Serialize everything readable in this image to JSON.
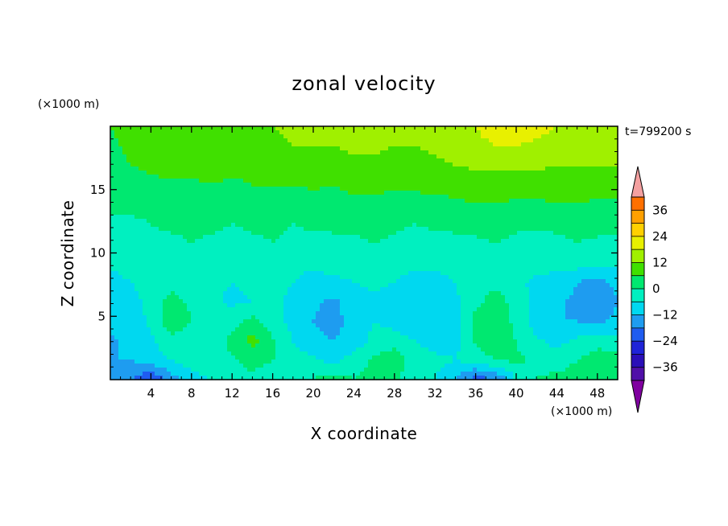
{
  "chart_data": {
    "type": "heatmap",
    "title": "zonal velocity",
    "xlabel": "X coordinate",
    "ylabel": "Z coordinate",
    "x_unit": "(×1000 m)",
    "y_unit": "(×1000 m)",
    "time_label": "t=799200 s",
    "xlim": [
      0,
      50
    ],
    "ylim": [
      0,
      20
    ],
    "x_ticks": [
      4,
      8,
      12,
      16,
      20,
      24,
      28,
      32,
      36,
      40,
      44,
      48
    ],
    "y_ticks": [
      5,
      10,
      15
    ],
    "colorbar": {
      "levels": [
        -42,
        -36,
        -30,
        -24,
        -18,
        -12,
        -6,
        0,
        6,
        12,
        18,
        24,
        30,
        36,
        42
      ],
      "labeled_levels": [
        36,
        24,
        12,
        0,
        -12,
        -24,
        -36
      ],
      "colors": [
        "#8000a0",
        "#5010a8",
        "#2a0fb8",
        "#1f24d8",
        "#1f5cf0",
        "#1e9cf0",
        "#00d8f0",
        "#00f0c0",
        "#00e870",
        "#40e000",
        "#a0f000",
        "#e8f000",
        "#ffd000",
        "#ffa000",
        "#ff7000",
        "#ff2a10",
        "#f4a0a0"
      ],
      "extend": "both"
    },
    "grid": [
      [
        6,
        8,
        10,
        11,
        12,
        11,
        10,
        11,
        12,
        13,
        13,
        13,
        14,
        14,
        13,
        12,
        14,
        16,
        18,
        20,
        20,
        20,
        18,
        17,
        16,
        16
      ],
      [
        5,
        7,
        9,
        10,
        11,
        11,
        10,
        10,
        11,
        12,
        12,
        12,
        13,
        13,
        12,
        12,
        13,
        15,
        17,
        18,
        18,
        17,
        16,
        15,
        15,
        15
      ],
      [
        4,
        6,
        7,
        8,
        8,
        8,
        8,
        8,
        9,
        9,
        10,
        10,
        11,
        11,
        10,
        10,
        11,
        12,
        13,
        13,
        13,
        13,
        12,
        12,
        12,
        12
      ],
      [
        3,
        4,
        5,
        5,
        5,
        6,
        5,
        6,
        6,
        6,
        7,
        6,
        8,
        7,
        7,
        7,
        8,
        8,
        9,
        9,
        9,
        9,
        8,
        9,
        9,
        9
      ],
      [
        1,
        1,
        2,
        2,
        3,
        3,
        2,
        3,
        4,
        3,
        3,
        4,
        4,
        5,
        4,
        4,
        4,
        5,
        6,
        6,
        5,
        5,
        6,
        6,
        5,
        5
      ],
      [
        -1,
        -1,
        0,
        1,
        1,
        1,
        0,
        1,
        1,
        0,
        1,
        1,
        1,
        2,
        1,
        0,
        1,
        1,
        2,
        2,
        1,
        1,
        1,
        2,
        2,
        2
      ],
      [
        -3,
        -2,
        -1,
        -1,
        0,
        -1,
        -2,
        -1,
        0,
        -1,
        -2,
        -1,
        -1,
        0,
        -1,
        -2,
        -2,
        -1,
        -1,
        0,
        -1,
        -2,
        -1,
        0,
        -1,
        -1
      ],
      [
        -5,
        -3,
        -2,
        -2,
        -3,
        -3,
        -4,
        -3,
        -2,
        -4,
        -5,
        -4,
        -3,
        -3,
        -4,
        -5,
        -4,
        -3,
        -2,
        -3,
        -4,
        -4,
        -3,
        -3,
        -4,
        -4
      ],
      [
        -8,
        -6,
        -3,
        -2,
        -4,
        -5,
        -6,
        -5,
        -4,
        -6,
        -8,
        -7,
        -6,
        -5,
        -6,
        -8,
        -9,
        -6,
        -3,
        -2,
        -5,
        -7,
        -9,
        -12,
        -14,
        -10
      ],
      [
        -9,
        -8,
        -4,
        2,
        -1,
        -5,
        -7,
        -6,
        -5,
        -7,
        -11,
        -13,
        -9,
        -7,
        -8,
        -11,
        -12,
        -7,
        -2,
        3,
        -3,
        -8,
        -11,
        -13,
        -18,
        -12
      ],
      [
        -11,
        -9,
        -5,
        4,
        0,
        -4,
        -3,
        2,
        -4,
        -8,
        -12,
        -14,
        -10,
        -6,
        -9,
        -12,
        -12,
        -8,
        2,
        5,
        -2,
        -9,
        -12,
        -12,
        -13,
        -10
      ],
      [
        -13,
        -10,
        -7,
        -2,
        -2,
        -4,
        2,
        8,
        1,
        -6,
        -11,
        -12,
        -10,
        -4,
        -2,
        -6,
        -10,
        -8,
        1,
        4,
        0,
        -5,
        -8,
        -5,
        -3,
        -4
      ],
      [
        -12,
        -12,
        -9,
        -6,
        -2,
        -2,
        -1,
        3,
        0,
        -3,
        -5,
        -8,
        -3,
        1,
        3,
        -2,
        -4,
        -6,
        -3,
        0,
        1,
        -1,
        -4,
        0,
        4,
        2
      ],
      [
        -15,
        -18,
        -24,
        -15,
        -9,
        -6,
        -3,
        -2,
        -6,
        -4,
        0,
        3,
        0,
        2,
        1,
        -3,
        -6,
        -12,
        -22,
        -18,
        -6,
        0,
        2,
        4,
        3,
        2
      ]
    ]
  }
}
